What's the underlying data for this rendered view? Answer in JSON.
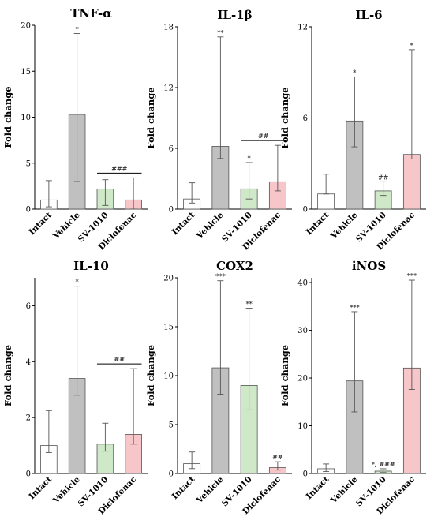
{
  "colors": {
    "Intact": "#ffffff",
    "Vehicle": "#c0c0c0",
    "SV-1010": "#cfe8c8",
    "Diclofenac": "#f7c6c9",
    "axis": "#000000",
    "errorbar": "#555555"
  },
  "chart_data": [
    {
      "type": "bar",
      "title": "TNF-α",
      "ylabel": "Fold change",
      "categories": [
        "Intact",
        "Vehicle",
        "SV-1010",
        "Diclofenac"
      ],
      "values": [
        1.0,
        10.3,
        2.2,
        1.0
      ],
      "err_low": [
        0.25,
        3.0,
        0.4,
        0.0
      ],
      "err_high": [
        3.1,
        19.1,
        3.2,
        3.4
      ],
      "ylim": [
        0,
        20
      ],
      "yticks": [
        "0",
        "5",
        "10",
        "15",
        "20"
      ],
      "annotations": [
        {
          "category": "Vehicle",
          "text": "*"
        }
      ],
      "bracket": {
        "from": "SV-1010",
        "to": "Diclofenac",
        "text": "###"
      }
    },
    {
      "type": "bar",
      "title": "IL-1β",
      "ylabel": "Fold change",
      "categories": [
        "Intact",
        "Vehicle",
        "SV-1010",
        "Diclofenac"
      ],
      "values": [
        1.0,
        6.2,
        2.0,
        2.7
      ],
      "err_low": [
        0.6,
        5.0,
        1.0,
        1.8
      ],
      "err_high": [
        2.6,
        17.0,
        4.6,
        6.3
      ],
      "ylim": [
        0,
        18
      ],
      "yticks": [
        "0",
        "6",
        "12",
        "18"
      ],
      "annotations": [
        {
          "category": "Vehicle",
          "text": "**"
        },
        {
          "category": "SV-1010",
          "text": "*"
        }
      ],
      "bracket": {
        "from": "SV-1010",
        "to": "Diclofenac",
        "text": "##"
      }
    },
    {
      "type": "bar",
      "title": "IL-6",
      "ylabel": "Fold change",
      "categories": [
        "Intact",
        "Vehicle",
        "SV-1010",
        "Diclofenac"
      ],
      "values": [
        1.0,
        5.8,
        1.2,
        3.6
      ],
      "err_low": [
        1.0,
        4.1,
        0.9,
        3.3
      ],
      "err_high": [
        2.3,
        8.7,
        1.8,
        10.5
      ],
      "ylim": [
        0,
        12
      ],
      "yticks": [
        "0",
        "6",
        "12"
      ],
      "annotations": [
        {
          "category": "Vehicle",
          "text": "*"
        },
        {
          "category": "SV-1010",
          "text": "##"
        },
        {
          "category": "Diclofenac",
          "text": "*"
        }
      ]
    },
    {
      "type": "bar",
      "title": "IL-10",
      "ylabel": "Fold change",
      "categories": [
        "Intact",
        "Vehicle",
        "SV-1010",
        "Diclofenac"
      ],
      "values": [
        1.0,
        3.4,
        1.05,
        1.4
      ],
      "err_low": [
        0.75,
        2.8,
        0.8,
        1.05
      ],
      "err_high": [
        2.25,
        6.7,
        1.8,
        3.75
      ],
      "ylim": [
        0,
        7
      ],
      "yticks": [
        "0",
        "2",
        "4",
        "6"
      ],
      "annotations": [
        {
          "category": "Vehicle",
          "text": "*"
        }
      ],
      "bracket": {
        "from": "SV-1010",
        "to": "Diclofenac",
        "text": "##"
      }
    },
    {
      "type": "bar",
      "title": "COX2",
      "ylabel": "Fold change",
      "categories": [
        "Intact",
        "Vehicle",
        "SV-1010",
        "Diclofenac"
      ],
      "values": [
        1.0,
        10.8,
        9.0,
        0.6
      ],
      "err_low": [
        0.5,
        8.1,
        6.5,
        0.35
      ],
      "err_high": [
        2.2,
        19.7,
        16.9,
        1.2
      ],
      "ylim": [
        0,
        20
      ],
      "yticks": [
        "0",
        "5",
        "10",
        "15",
        "20"
      ],
      "annotations": [
        {
          "category": "Vehicle",
          "text": "***"
        },
        {
          "category": "SV-1010",
          "text": "**"
        },
        {
          "category": "Diclofenac",
          "text": "##"
        }
      ]
    },
    {
      "type": "bar",
      "title": "iNOS",
      "ylabel": "Fold change",
      "categories": [
        "Intact",
        "Vehicle",
        "SV-1010",
        "Diclofenac"
      ],
      "values": [
        1.0,
        19.4,
        0.5,
        22.1
      ],
      "err_low": [
        0.4,
        12.9,
        0.2,
        17.6
      ],
      "err_high": [
        2.0,
        33.9,
        1.0,
        40.5
      ],
      "ylim": [
        0,
        41
      ],
      "yticks": [
        "0",
        "10",
        "20",
        "30",
        "40"
      ],
      "annotations": [
        {
          "category": "Vehicle",
          "text": "***"
        },
        {
          "category": "SV-1010",
          "text": "*, ###"
        },
        {
          "category": "Diclofenac",
          "text": "***"
        }
      ]
    }
  ]
}
